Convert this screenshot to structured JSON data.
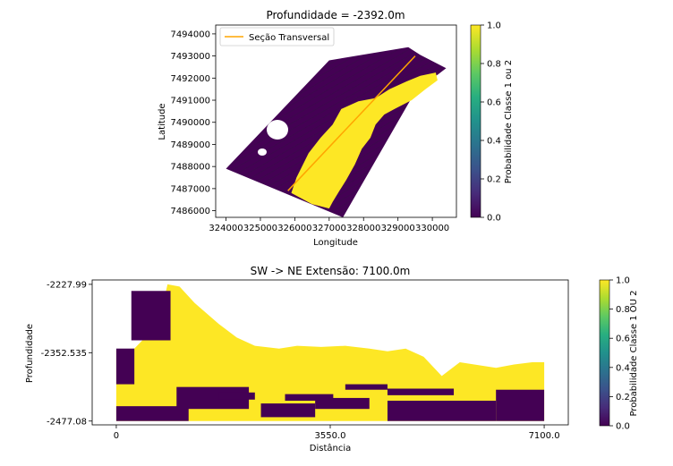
{
  "chart_data": [
    {
      "type": "heatmap",
      "title": "Profundidade = -2392.0m",
      "xlabel": "Longitude",
      "ylabel": "Latitude",
      "xlim": [
        323700,
        330700
      ],
      "ylim": [
        7485700,
        7494400
      ],
      "x_ticks": [
        324000,
        325000,
        326000,
        327000,
        328000,
        329000,
        330000
      ],
      "y_ticks": [
        7486000,
        7487000,
        7488000,
        7489000,
        7490000,
        7491000,
        7492000,
        7493000,
        7494000
      ],
      "legend": {
        "placement": "top-left",
        "entries": [
          "Seção Transversal"
        ]
      },
      "colorbar": {
        "label": "Probabilidade Classe 1 ou 2",
        "range": [
          0.0,
          1.0
        ],
        "ticks": [
          0.0,
          0.2,
          0.4,
          0.6,
          0.8,
          1.0
        ]
      },
      "grid": false,
      "section_line": {
        "x": [
          325800,
          329500
        ],
        "y": [
          7486900,
          7493000
        ],
        "color": "#ffa500"
      },
      "domain_outline": {
        "x": [
          324000,
          327000,
          329300,
          329650,
          330400,
          330150,
          329600,
          327400
        ],
        "y": [
          7487900,
          7492800,
          7493400,
          7493050,
          7492450,
          7492150,
          7491650,
          7485700
        ]
      },
      "high_prob_region": {
        "x": [
          325900,
          326050,
          326400,
          326750,
          327100,
          327350,
          327850,
          328350,
          328750,
          329250,
          329650,
          330100,
          330150,
          329800,
          329400,
          328900,
          328600,
          328350,
          328200,
          327950,
          327750,
          327500,
          327300,
          327100,
          327000,
          326750,
          326500,
          326200
        ],
        "y": [
          7486800,
          7487500,
          7488600,
          7489300,
          7489900,
          7490600,
          7490950,
          7491100,
          7491500,
          7491850,
          7492100,
          7492250,
          7491900,
          7491500,
          7491000,
          7490600,
          7490350,
          7489900,
          7489300,
          7488800,
          7488100,
          7487400,
          7486900,
          7486400,
          7486100,
          7486200,
          7486300,
          7486550
        ]
      }
    },
    {
      "type": "heatmap",
      "title": "SW -> NE      Extensão: 7100.0m",
      "xlabel": "Distância",
      "ylabel": "Profundidade",
      "xlim": [
        -400,
        7500
      ],
      "ylim": [
        -2484,
        -2220
      ],
      "x_ticks": [
        0,
        3550.0,
        7100.0
      ],
      "x_tick_labels": [
        "0",
        "3550.0",
        "7100.0"
      ],
      "y_ticks": [
        -2227.99,
        -2352.535,
        -2477.08
      ],
      "y_tick_labels": [
        "-2227.99",
        "-2352.535",
        "-2477.08"
      ],
      "colorbar": {
        "label": "Probabilidade Classe 1 OU 2",
        "range": [
          0.0,
          1.0
        ],
        "ticks": [
          0.0,
          0.2,
          0.4,
          0.6,
          0.8,
          1.0
        ]
      },
      "grid": false,
      "top_surface": {
        "x": [
          0,
          300,
          700,
          850,
          1050,
          1300,
          1700,
          2000,
          2300,
          2700,
          3000,
          3400,
          3800,
          4200,
          4500,
          4800,
          5100,
          5400,
          5700,
          6000,
          6300,
          6600,
          6900,
          7100
        ],
        "y": [
          -2348,
          -2345,
          -2300,
          -2228,
          -2232,
          -2262,
          -2300,
          -2325,
          -2340,
          -2345,
          -2340,
          -2342,
          -2340,
          -2345,
          -2350,
          -2345,
          -2360,
          -2395,
          -2370,
          -2375,
          -2380,
          -2374,
          -2370,
          -2370
        ]
      },
      "low_prob_bands": [
        {
          "x0": 0,
          "x1": 300,
          "y0": -2410,
          "y1": -2345
        },
        {
          "x0": 250,
          "x1": 900,
          "y0": -2330,
          "y1": -2240
        },
        {
          "x0": 0,
          "x1": 1200,
          "y0": -2477,
          "y1": -2450
        },
        {
          "x0": 1000,
          "x1": 2200,
          "y0": -2455,
          "y1": -2415
        },
        {
          "x0": 2400,
          "x1": 3300,
          "y0": -2470,
          "y1": -2445
        },
        {
          "x0": 3300,
          "x1": 4200,
          "y0": -2455,
          "y1": -2435
        },
        {
          "x0": 3800,
          "x1": 4500,
          "y0": -2420,
          "y1": -2410
        },
        {
          "x0": 4500,
          "x1": 5600,
          "y0": -2430,
          "y1": -2418
        },
        {
          "x0": 4500,
          "x1": 6300,
          "y0": -2477,
          "y1": -2440
        },
        {
          "x0": 6300,
          "x1": 7100,
          "y0": -2477,
          "y1": -2420
        },
        {
          "x0": 1700,
          "x1": 2300,
          "y0": -2438,
          "y1": -2425
        },
        {
          "x0": 2800,
          "x1": 3600,
          "y0": -2440,
          "y1": -2428
        }
      ]
    }
  ]
}
